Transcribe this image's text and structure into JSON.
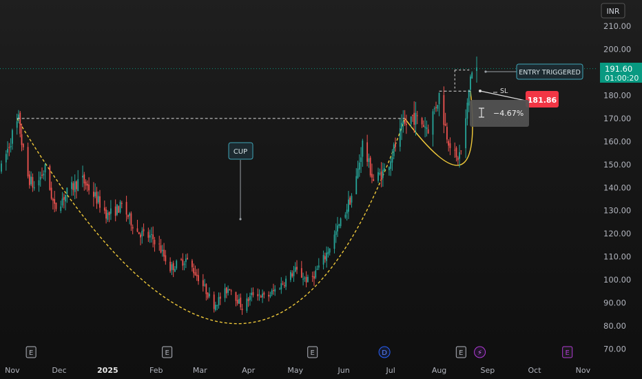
{
  "currency": "INR",
  "current_price": "191.60",
  "countdown": "01:00:20",
  "colors": {
    "up": "#26a69a",
    "down": "#ef5350",
    "price_badge": "#089981",
    "sl_badge": "#f23645",
    "pattern_curve": "#f0c93a",
    "event_purple": "#b33bd8",
    "event_blue": "#2962ff"
  },
  "annotations": {
    "cup_label": "CUP",
    "entry_label": "ENTRY TRIGGERED",
    "sl_label": "SL",
    "sl_price": "181.86",
    "risk_pct": "−4.67%"
  },
  "events": [
    {
      "date": "2024-11-13",
      "type": "earnings",
      "label": "E"
    },
    {
      "date": "2025-02-08",
      "type": "earnings",
      "label": "E"
    },
    {
      "date": "2025-05-12",
      "type": "earnings",
      "label": "E"
    },
    {
      "date": "2025-06-27",
      "type": "dividend",
      "label": "D"
    },
    {
      "date": "2025-08-15",
      "type": "earnings",
      "label": "E"
    },
    {
      "date": "2025-08-27",
      "type": "split",
      "label": "⚡"
    },
    {
      "date": "2025-10-22",
      "type": "earnings-upcoming",
      "label": "E"
    }
  ],
  "chart_data": {
    "type": "candlestick",
    "x_axis": {
      "range": [
        "2024-10-25",
        "2025-11-07"
      ],
      "ticks": [
        {
          "date": "2024-11-01",
          "label": "Nov"
        },
        {
          "date": "2024-12-01",
          "label": "Dec"
        },
        {
          "date": "2025-01-01",
          "label": "2025"
        },
        {
          "date": "2025-02-01",
          "label": "Feb"
        },
        {
          "date": "2025-03-01",
          "label": "Mar"
        },
        {
          "date": "2025-04-01",
          "label": "Apr"
        },
        {
          "date": "2025-05-01",
          "label": "May"
        },
        {
          "date": "2025-06-01",
          "label": "Jun"
        },
        {
          "date": "2025-07-01",
          "label": "Jul"
        },
        {
          "date": "2025-08-01",
          "label": "Aug"
        },
        {
          "date": "2025-09-01",
          "label": "Sep"
        },
        {
          "date": "2025-10-01",
          "label": "Oct"
        },
        {
          "date": "2025-11-01",
          "label": "Nov"
        }
      ]
    },
    "y_axis": {
      "range": [
        70,
        215
      ],
      "ticks": [
        "210.00",
        "200.00",
        "190.00",
        "180.00",
        "170.00",
        "160.00",
        "150.00",
        "140.00",
        "130.00",
        "120.00",
        "110.00",
        "100.00",
        "90.00",
        "80.00",
        "70.00"
      ]
    },
    "price_path": [
      [
        "2024-10-25",
        148
      ],
      [
        "2024-11-01",
        163
      ],
      [
        "2024-11-05",
        169
      ],
      [
        "2024-11-10",
        146
      ],
      [
        "2024-11-15",
        140
      ],
      [
        "2024-11-22",
        148
      ],
      [
        "2024-11-28",
        131
      ],
      [
        "2024-12-05",
        137
      ],
      [
        "2024-12-15",
        144
      ],
      [
        "2024-12-22",
        138
      ],
      [
        "2025-01-01",
        128
      ],
      [
        "2025-01-10",
        132
      ],
      [
        "2025-01-20",
        121
      ],
      [
        "2025-02-01",
        117
      ],
      [
        "2025-02-10",
        105
      ],
      [
        "2025-02-20",
        109
      ],
      [
        "2025-03-01",
        100
      ],
      [
        "2025-03-10",
        89
      ],
      [
        "2025-03-20",
        97
      ],
      [
        "2025-03-28",
        88
      ],
      [
        "2025-04-05",
        95
      ],
      [
        "2025-04-12",
        92
      ],
      [
        "2025-04-22",
        98
      ],
      [
        "2025-05-01",
        104
      ],
      [
        "2025-05-10",
        99
      ],
      [
        "2025-05-20",
        110
      ],
      [
        "2025-06-01",
        128
      ],
      [
        "2025-06-08",
        140
      ],
      [
        "2025-06-13",
        159
      ],
      [
        "2025-06-20",
        143
      ],
      [
        "2025-06-28",
        148
      ],
      [
        "2025-07-08",
        165
      ],
      [
        "2025-07-15",
        171
      ],
      [
        "2025-07-25",
        166
      ],
      [
        "2025-08-01",
        180
      ],
      [
        "2025-08-06",
        163
      ],
      [
        "2025-08-12",
        152
      ],
      [
        "2025-08-16",
        157
      ],
      [
        "2025-08-19",
        175
      ],
      [
        "2025-08-21",
        189
      ],
      [
        "2025-08-25",
        191.6
      ]
    ],
    "levels": {
      "cup_rim": 170,
      "handle_rim": 181.86,
      "stop_loss": 181.86,
      "current": 191.6
    },
    "patterns": {
      "cup": {
        "left": [
          "2024-11-04",
          170
        ],
        "bottom": [
          "2025-03-25",
          81
        ],
        "right": [
          "2025-07-10",
          170
        ]
      },
      "handle": {
        "left": [
          "2025-07-10",
          170
        ],
        "bottom": [
          "2025-08-15",
          150
        ],
        "right": [
          "2025-08-21",
          181.86
        ]
      }
    }
  }
}
